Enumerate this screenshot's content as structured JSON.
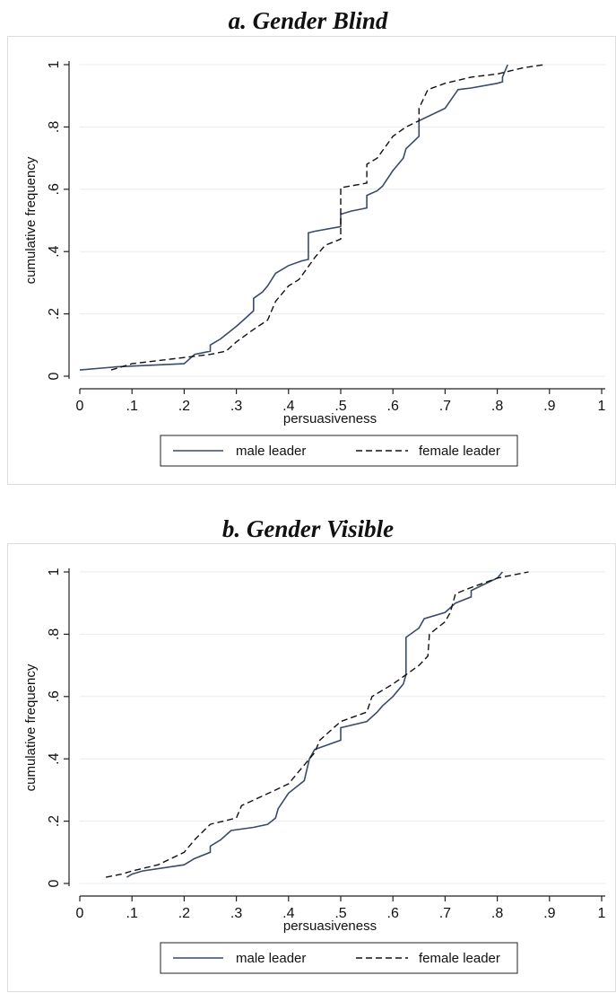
{
  "panels": [
    {
      "title": "a. Gender Blind"
    },
    {
      "title": "b. Gender Visible"
    }
  ],
  "chart_data": [
    {
      "type": "line",
      "title": "a. Gender Blind",
      "xlabel": "persuasiveness",
      "ylabel": "cumulative frequency",
      "xlim": [
        0,
        1
      ],
      "ylim": [
        0,
        1
      ],
      "x_ticks": [
        0,
        0.1,
        0.2,
        0.3,
        0.4,
        0.5,
        0.6,
        0.7,
        0.8,
        0.9,
        1
      ],
      "x_tick_labels": [
        "0",
        ".1",
        ".2",
        ".3",
        ".4",
        ".5",
        ".6",
        ".7",
        ".8",
        ".9",
        "1"
      ],
      "y_ticks": [
        0,
        0.2,
        0.4,
        0.6,
        0.8,
        1
      ],
      "y_tick_labels": [
        "0",
        ".2",
        ".4",
        ".6",
        ".8",
        "1"
      ],
      "grid": "horizontal",
      "legend_position": "bottom",
      "series": [
        {
          "name": "male leader",
          "color": "#3a4a6b",
          "dash": "solid",
          "x": [
            0,
            0.07,
            0.2,
            0.22,
            0.25,
            0.25,
            0.27,
            0.3,
            0.32,
            0.333,
            0.333,
            0.35,
            0.36,
            0.375,
            0.4,
            0.425,
            0.438,
            0.438,
            0.45,
            0.5,
            0.5,
            0.52,
            0.55,
            0.55,
            0.57,
            0.58,
            0.6,
            0.62,
            0.625,
            0.65,
            0.65,
            0.7,
            0.725,
            0.75,
            0.8,
            0.81,
            0.81,
            0.82
          ],
          "y": [
            0.02,
            0.03,
            0.04,
            0.07,
            0.08,
            0.1,
            0.12,
            0.16,
            0.19,
            0.21,
            0.25,
            0.27,
            0.29,
            0.33,
            0.355,
            0.37,
            0.375,
            0.46,
            0.465,
            0.48,
            0.52,
            0.53,
            0.54,
            0.58,
            0.595,
            0.61,
            0.66,
            0.7,
            0.73,
            0.77,
            0.82,
            0.86,
            0.92,
            0.925,
            0.94,
            0.945,
            0.96,
            1.0
          ]
        },
        {
          "name": "female leader",
          "color": "#111111",
          "dash": "dashed",
          "x": [
            0.06,
            0.08,
            0.1,
            0.2,
            0.25,
            0.28,
            0.3,
            0.333,
            0.36,
            0.375,
            0.4,
            0.42,
            0.45,
            0.47,
            0.5,
            0.5,
            0.55,
            0.55,
            0.57,
            0.6,
            0.625,
            0.65,
            0.65,
            0.667,
            0.7,
            0.75,
            0.8,
            0.85,
            0.89
          ],
          "y": [
            0.02,
            0.03,
            0.04,
            0.06,
            0.07,
            0.08,
            0.11,
            0.15,
            0.18,
            0.24,
            0.29,
            0.31,
            0.38,
            0.42,
            0.44,
            0.605,
            0.62,
            0.68,
            0.7,
            0.77,
            0.8,
            0.82,
            0.86,
            0.92,
            0.94,
            0.96,
            0.97,
            0.99,
            1.0
          ]
        }
      ]
    },
    {
      "type": "line",
      "title": "b. Gender Visible",
      "xlabel": "persuasiveness",
      "ylabel": "cumulative frequency",
      "xlim": [
        0,
        1
      ],
      "ylim": [
        0,
        1
      ],
      "x_ticks": [
        0,
        0.1,
        0.2,
        0.3,
        0.4,
        0.5,
        0.6,
        0.7,
        0.8,
        0.9,
        1
      ],
      "x_tick_labels": [
        "0",
        ".1",
        ".2",
        ".3",
        ".4",
        ".5",
        ".6",
        ".7",
        ".8",
        ".9",
        "1"
      ],
      "y_ticks": [
        0,
        0.2,
        0.4,
        0.6,
        0.8,
        1
      ],
      "y_tick_labels": [
        "0",
        ".2",
        ".4",
        ".6",
        ".8",
        "1"
      ],
      "grid": "horizontal",
      "legend_position": "bottom",
      "series": [
        {
          "name": "male leader",
          "color": "#3a4a6b",
          "dash": "solid",
          "x": [
            0.09,
            0.1,
            0.12,
            0.2,
            0.22,
            0.25,
            0.25,
            0.27,
            0.29,
            0.333,
            0.36,
            0.375,
            0.38,
            0.4,
            0.43,
            0.44,
            0.45,
            0.5,
            0.5,
            0.55,
            0.57,
            0.58,
            0.6,
            0.62,
            0.625,
            0.625,
            0.65,
            0.66,
            0.7,
            0.72,
            0.75,
            0.75,
            0.8,
            0.81
          ],
          "y": [
            0.02,
            0.03,
            0.04,
            0.06,
            0.08,
            0.1,
            0.12,
            0.14,
            0.17,
            0.18,
            0.19,
            0.21,
            0.24,
            0.29,
            0.33,
            0.4,
            0.43,
            0.46,
            0.5,
            0.52,
            0.55,
            0.57,
            0.6,
            0.64,
            0.67,
            0.79,
            0.82,
            0.85,
            0.87,
            0.9,
            0.92,
            0.94,
            0.98,
            1.0
          ]
        },
        {
          "name": "female leader",
          "color": "#111111",
          "dash": "dashed",
          "x": [
            0.05,
            0.08,
            0.1,
            0.15,
            0.2,
            0.22,
            0.25,
            0.3,
            0.31,
            0.375,
            0.4,
            0.42,
            0.45,
            0.46,
            0.5,
            0.55,
            0.56,
            0.6,
            0.625,
            0.65,
            0.667,
            0.67,
            0.7,
            0.71,
            0.72,
            0.75,
            0.8,
            0.86
          ],
          "y": [
            0.02,
            0.03,
            0.04,
            0.06,
            0.1,
            0.14,
            0.19,
            0.21,
            0.25,
            0.3,
            0.32,
            0.36,
            0.42,
            0.46,
            0.52,
            0.55,
            0.6,
            0.64,
            0.67,
            0.7,
            0.73,
            0.8,
            0.84,
            0.87,
            0.93,
            0.95,
            0.98,
            1.0
          ]
        }
      ]
    }
  ]
}
